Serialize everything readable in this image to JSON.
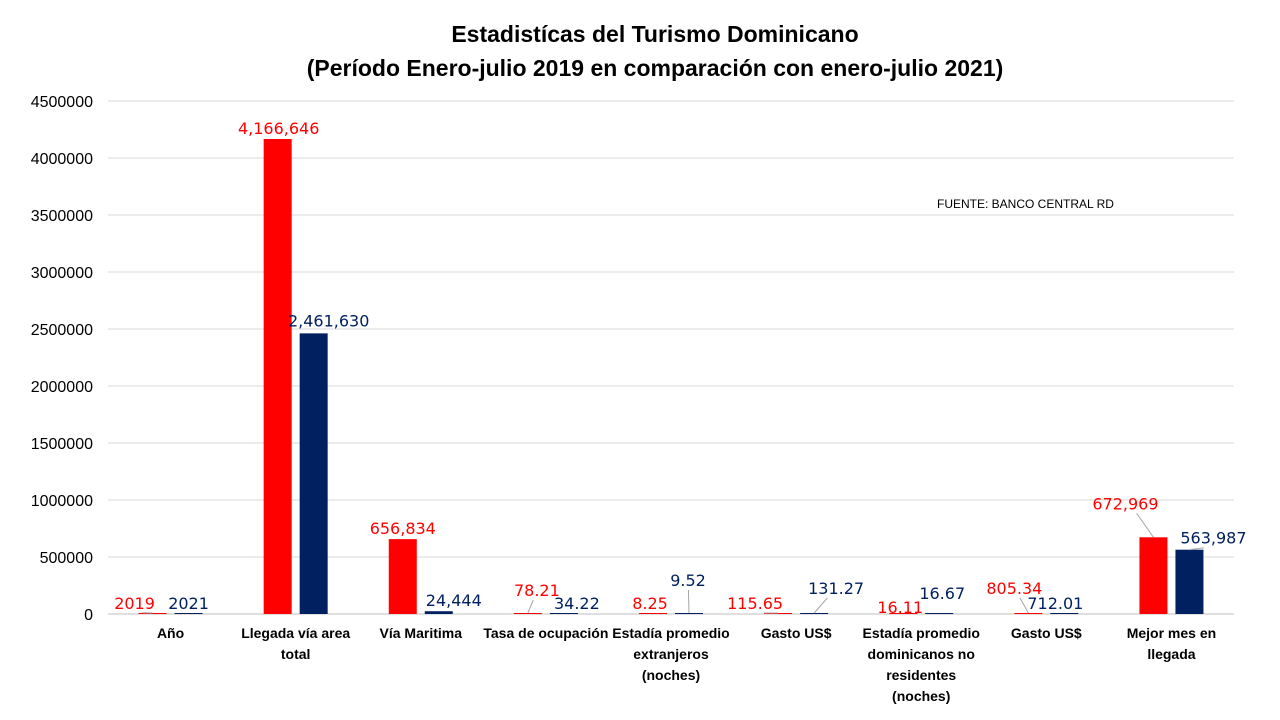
{
  "chart_data": {
    "type": "bar",
    "title": "Estadistícas del Turismo Dominicano",
    "subtitle": "(Período Enero-julio 2019 en comparación con enero-julio 2021)",
    "source_note": "FUENTE: BANCO CENTRAL RD",
    "categories": [
      [
        "Año"
      ],
      [
        "Llegada vía area",
        "total"
      ],
      [
        "Vía Maritima"
      ],
      [
        "Tasa de ocupación"
      ],
      [
        "Estadía promedio",
        "extranjeros",
        "(noches)"
      ],
      [
        "Gasto US$"
      ],
      [
        "Estadía promedio",
        "dominicanos no",
        "residentes",
        "(noches)"
      ],
      [
        "Gasto US$"
      ],
      [
        "Mejor mes en",
        "llegada"
      ]
    ],
    "series": [
      {
        "color": "#ff0000",
        "values": [
          2019,
          4166646,
          656834,
          78.21,
          8.25,
          115.65,
          16.11,
          805.34,
          672969
        ],
        "labels": [
          "2019",
          "4,166,646",
          "656,834",
          "78.21",
          "8.25",
          "115.65",
          "16.11",
          "805.34",
          "672,969"
        ]
      },
      {
        "color": "#002060",
        "values": [
          2021,
          2461630,
          24444,
          34.22,
          9.52,
          131.27,
          16.67,
          712.01,
          563987
        ],
        "labels": [
          "2021",
          "2,461,630",
          "24,444",
          "34.22",
          "9.52",
          "131.27",
          "16.67",
          "712.01",
          "563,987"
        ]
      }
    ],
    "ylim": [
      0,
      4500000
    ],
    "yticks": [
      0,
      500000,
      1000000,
      1500000,
      2000000,
      2500000,
      3000000,
      3500000,
      4000000,
      4500000
    ],
    "ytick_labels": [
      "0",
      "500000",
      "1000000",
      "1500000",
      "2000000",
      "2500000",
      "3000000",
      "3500000",
      "4000000",
      "4500000"
    ],
    "grid": true,
    "legend": "none"
  }
}
